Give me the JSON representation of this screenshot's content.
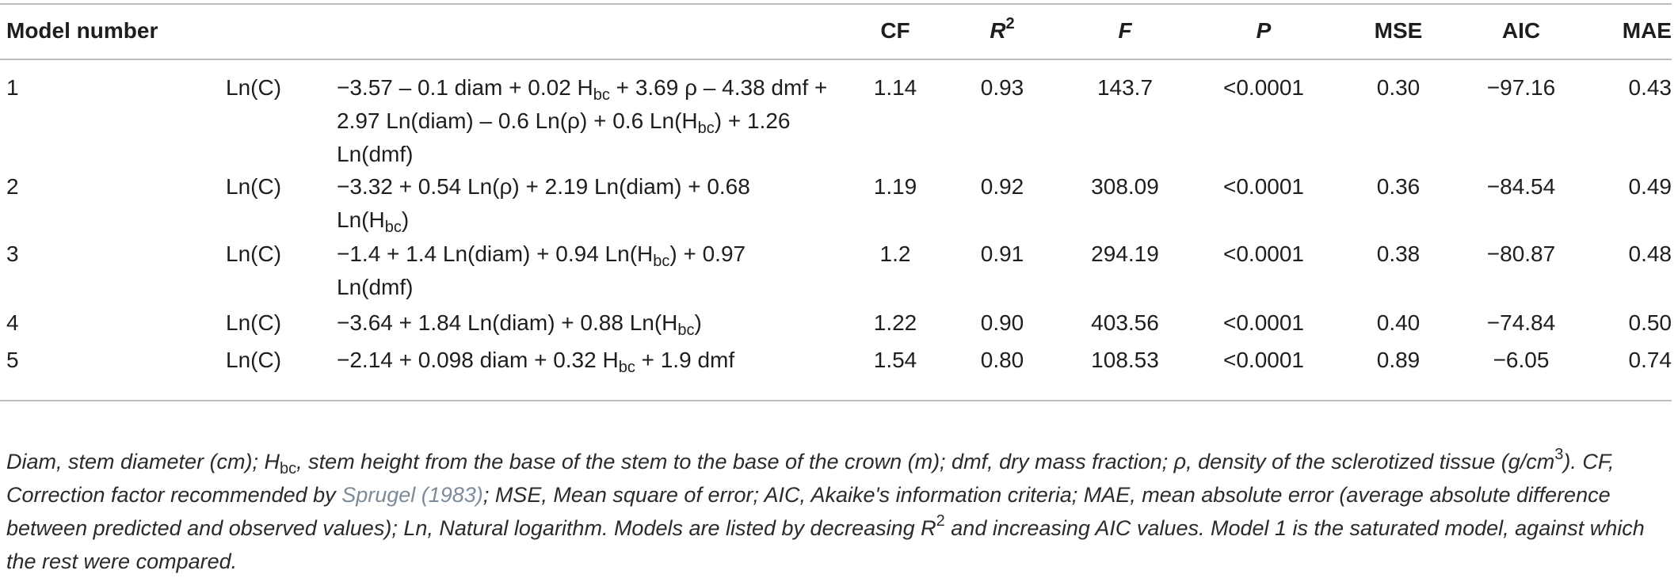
{
  "headers": {
    "model": "Model number",
    "cf": "CF",
    "r2_base": "R",
    "r2_sup": "2",
    "f": "F",
    "p": "P",
    "mse": "MSE",
    "aic": "AIC",
    "mae": "MAE"
  },
  "rows": [
    {
      "num": "1",
      "dep": "Ln(C)",
      "eq": [
        "−3.57 – 0.1 diam + 0.02 H",
        "bc",
        " + 3.69 ρ – 4.38 dmf + 2.97 Ln(diam) – 0.6 Ln(ρ) + 0.6 Ln(H",
        "bc",
        ") + 1.26 Ln(dmf)"
      ],
      "cf": "1.14",
      "r2": "0.93",
      "f": "143.7",
      "p": "<0.0001",
      "mse": "0.30",
      "aic": "−97.16",
      "mae": "0.43"
    },
    {
      "num": "2",
      "dep": "Ln(C)",
      "eq": [
        "−3.32 + 0.54 Ln(ρ) + 2.19 Ln(diam) + 0.68 Ln(H",
        "bc",
        ")"
      ],
      "cf": "1.19",
      "r2": "0.92",
      "f": "308.09",
      "p": "<0.0001",
      "mse": "0.36",
      "aic": "−84.54",
      "mae": "0.49"
    },
    {
      "num": "3",
      "dep": "Ln(C)",
      "eq": [
        "−1.4 + 1.4 Ln(diam) + 0.94 Ln(H",
        "bc",
        ") + 0.97 Ln(dmf)"
      ],
      "cf": "1.2",
      "r2": "0.91",
      "f": "294.19",
      "p": "<0.0001",
      "mse": "0.38",
      "aic": "−80.87",
      "mae": "0.48"
    },
    {
      "num": "4",
      "dep": "Ln(C)",
      "eq": [
        "−3.64 + 1.84 Ln(diam) + 0.88 Ln(H",
        "bc",
        ")"
      ],
      "cf": "1.22",
      "r2": "0.90",
      "f": "403.56",
      "p": "<0.0001",
      "mse": "0.40",
      "aic": "−74.84",
      "mae": "0.50"
    },
    {
      "num": "5",
      "dep": "Ln(C)",
      "eq": [
        "−2.14 + 0.098 diam + 0.32 H",
        "bc",
        " + 1.9 dmf"
      ],
      "cf": "1.54",
      "r2": "0.80",
      "f": "108.53",
      "p": "<0.0001",
      "mse": "0.89",
      "aic": "−6.05",
      "mae": "0.74"
    }
  ],
  "footnote": {
    "p1": "Diam, stem diameter (cm); H",
    "s1": "bc",
    "p2": ", stem height from the base of the stem to the base of the crown (m); dmf, dry mass fraction; ρ, density of the sclerotized tissue (g/cm",
    "s2": "3",
    "p3": "). CF, Correction factor recommended by ",
    "ref": "Sprugel (1983)",
    "p4": "; MSE, Mean square of error; AIC, Akaike's information criteria; MAE, mean absolute error (average absolute difference between predicted and observed values); Ln, Natural logarithm. Models are listed by decreasing R",
    "s3": "2",
    "p5": " and increasing AIC values. Model 1 is the saturated model, against which the rest were compared."
  }
}
